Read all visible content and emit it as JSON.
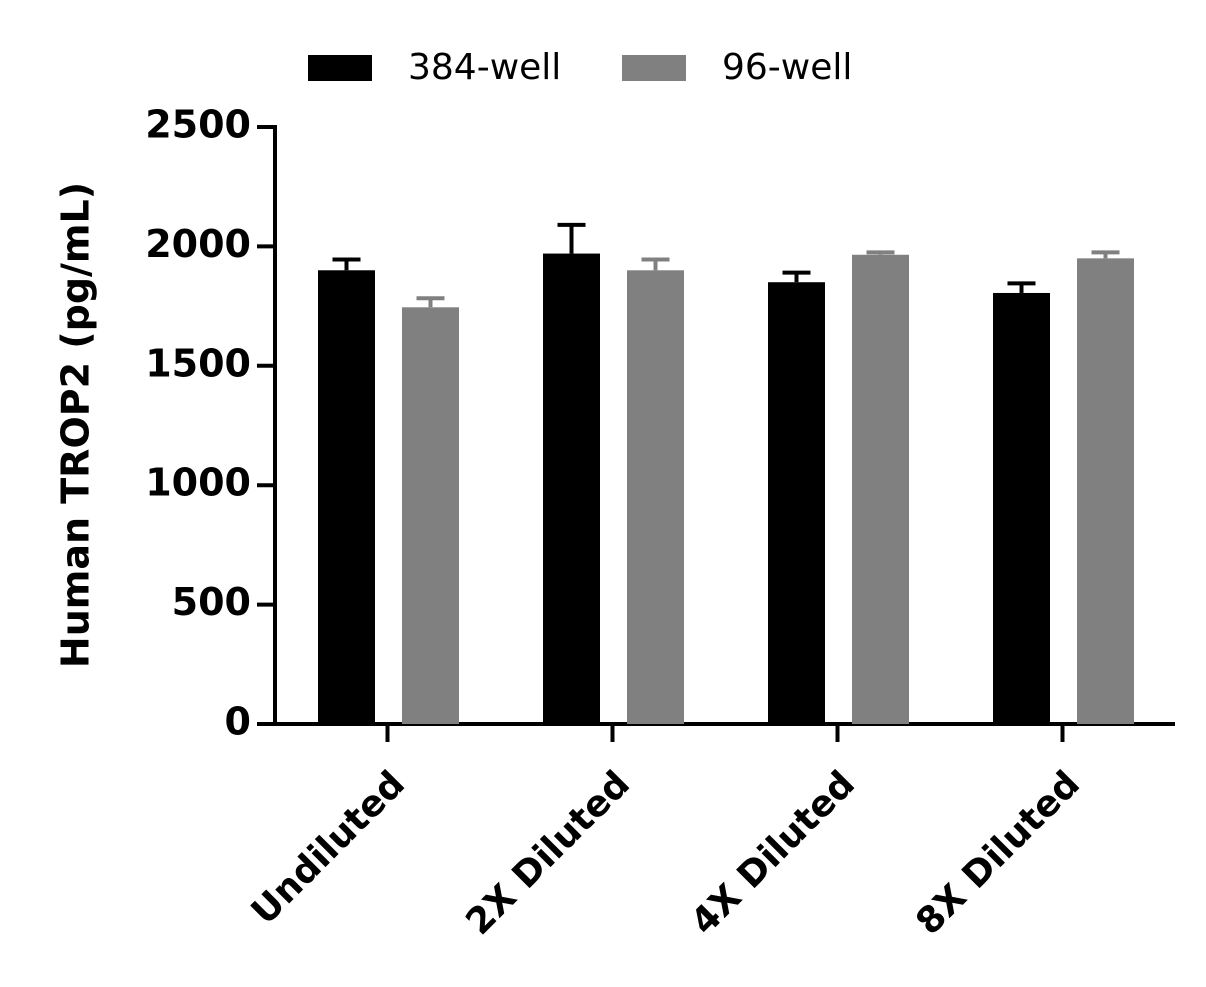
{
  "chart_data": {
    "type": "bar",
    "y_label": "Human  TROP2 (pg/mL)",
    "categories": [
      "Undiluted",
      "2X Diluted",
      "4X Diluted",
      "8X Diluted"
    ],
    "series": [
      {
        "name": "384-well",
        "color": "#000000",
        "values": [
          1900,
          1970,
          1850,
          1805
        ],
        "errors": [
          45,
          120,
          40,
          40
        ]
      },
      {
        "name": "96-well",
        "color": "#808080",
        "values": [
          1745,
          1900,
          1965,
          1950
        ],
        "errors": [
          38,
          45,
          10,
          25
        ]
      }
    ],
    "ylim": [
      0,
      2500
    ],
    "yticks": [
      0,
      500,
      1000,
      1500,
      2000,
      2500
    ],
    "legend": "top"
  }
}
